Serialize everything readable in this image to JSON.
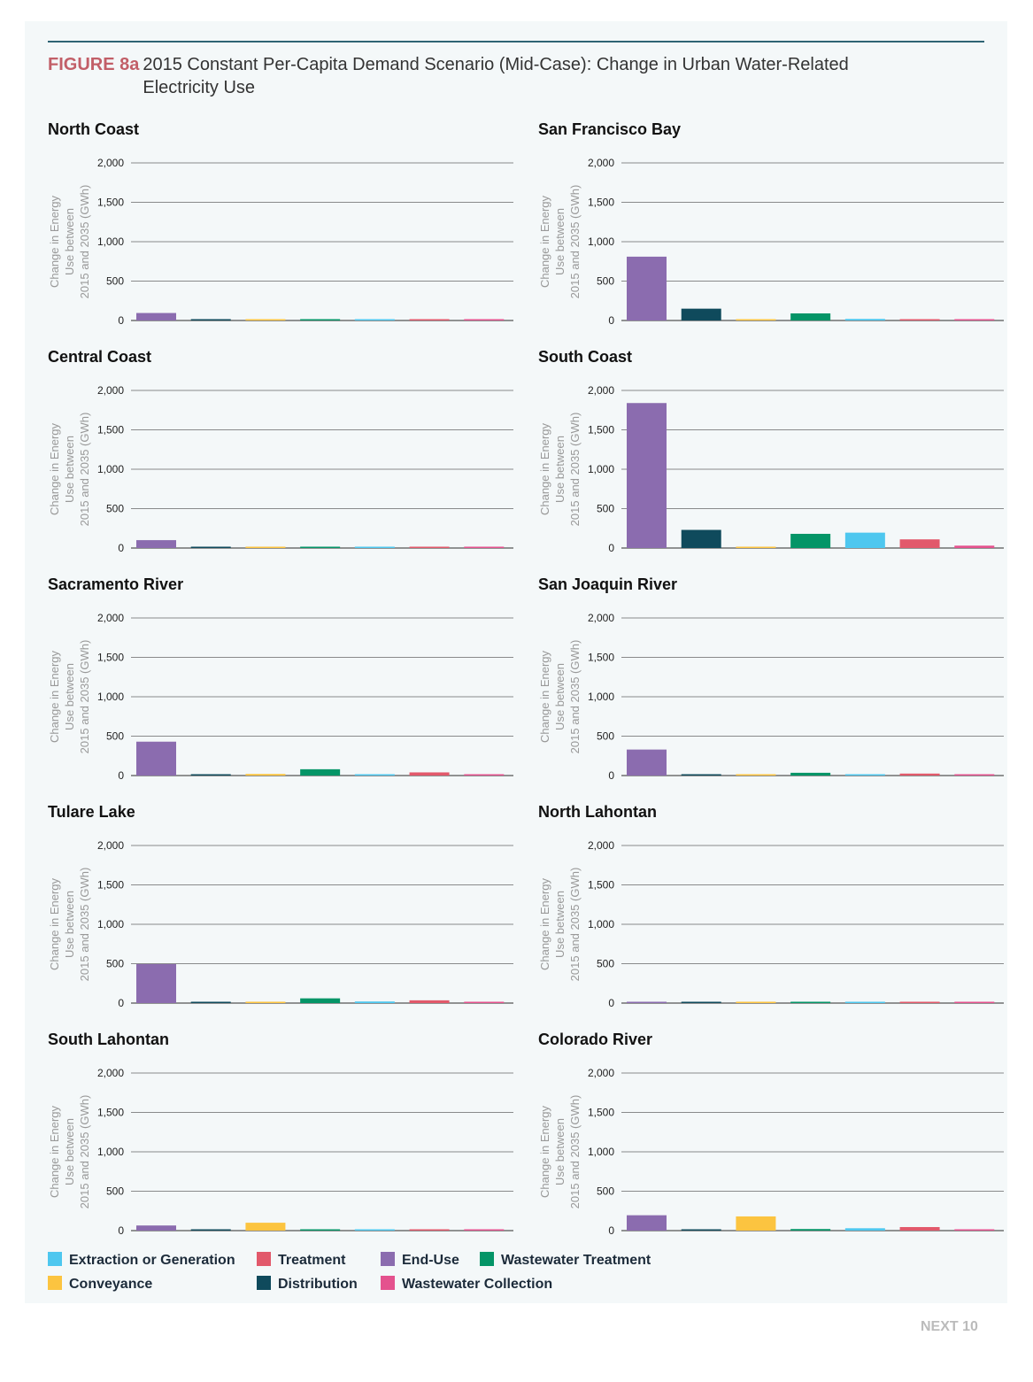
{
  "header": {
    "figure_label": "FIGURE 8a",
    "title": "2015 Constant Per-Capita Demand Scenario (Mid-Case): Change in Urban Water-Related Electricity Use"
  },
  "footer": {
    "brand": "NEXT 10"
  },
  "chart_data": {
    "type": "bar",
    "ylabel": "Change in Energy Use between 2015 and 2035 (GWh)",
    "ylim": [
      0,
      2000
    ],
    "yticks": [
      "2,000",
      "1,500",
      "1,000",
      "500",
      "0"
    ],
    "categories": [
      "End-Use",
      "Distribution",
      "Conveyance",
      "Wastewater Treatment",
      "Extraction or Generation",
      "Treatment",
      "Wastewater Collection"
    ],
    "colors": [
      "#8b6caf",
      "#0f4a5c",
      "#fcc440",
      "#049567",
      "#4ec7ef",
      "#e2596b",
      "#e4528e"
    ],
    "regions": [
      {
        "name": "North Coast",
        "values": [
          95,
          10,
          4,
          8,
          6,
          7,
          3
        ]
      },
      {
        "name": "San Francisco Bay",
        "values": [
          810,
          150,
          12,
          90,
          20,
          15,
          10
        ]
      },
      {
        "name": "Central Coast",
        "values": [
          100,
          12,
          4,
          8,
          6,
          8,
          3
        ]
      },
      {
        "name": "South Coast",
        "values": [
          1840,
          230,
          15,
          180,
          195,
          110,
          30
        ]
      },
      {
        "name": "Sacramento River",
        "values": [
          430,
          8,
          20,
          80,
          3,
          40,
          10
        ]
      },
      {
        "name": "San Joaquin River",
        "values": [
          330,
          5,
          10,
          35,
          2,
          25,
          5
        ]
      },
      {
        "name": "Tulare Lake",
        "values": [
          495,
          8,
          15,
          60,
          20,
          35,
          6
        ]
      },
      {
        "name": "North Lahontan",
        "values": [
          2,
          1,
          1,
          1,
          1,
          1,
          1
        ]
      },
      {
        "name": "South Lahontan",
        "values": [
          65,
          15,
          100,
          5,
          8,
          10,
          2
        ]
      },
      {
        "name": "Colorado River",
        "values": [
          195,
          8,
          180,
          20,
          30,
          45,
          4
        ]
      }
    ]
  },
  "legend": {
    "items": [
      {
        "label": "Extraction or Generation",
        "color": "#4ec7ef"
      },
      {
        "label": "Treatment",
        "color": "#e2596b"
      },
      {
        "label": "End-Use",
        "color": "#8b6caf"
      },
      {
        "label": "Wastewater Treatment",
        "color": "#049567"
      },
      {
        "label": "Conveyance",
        "color": "#fcc440"
      },
      {
        "label": "Distribution",
        "color": "#0f4a5c"
      },
      {
        "label": "Wastewater Collection",
        "color": "#e4528e"
      }
    ]
  }
}
